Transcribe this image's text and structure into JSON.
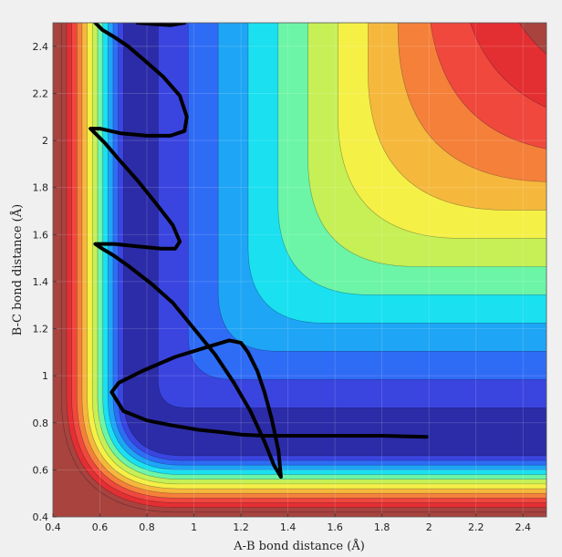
{
  "chart_data": {
    "type": "contour",
    "xlabel": "A-B bond distance (Å)",
    "ylabel": "B-C bond distance (Å)",
    "xlim": [
      0.4,
      2.5
    ],
    "ylim": [
      0.4,
      2.5
    ],
    "xticks": [
      "0.4",
      "0.6",
      "0.8",
      "1",
      "1.2",
      "1.4",
      "1.6",
      "1.8",
      "2",
      "2.2",
      "2.4"
    ],
    "yticks": [
      "0.4",
      "0.6",
      "0.8",
      "1",
      "1.2",
      "1.4",
      "1.6",
      "1.8",
      "2",
      "2.2",
      "2.4"
    ],
    "grid": true,
    "colormap": "jet",
    "trajectory": {
      "color": "#000000",
      "x": [
        1.99,
        1.8,
        1.6,
        1.4,
        1.3,
        1.2,
        1.12,
        1.02,
        0.9,
        0.8,
        0.7,
        0.65,
        0.68,
        0.78,
        0.92,
        1.05,
        1.15,
        1.2,
        1.23,
        1.27,
        1.3,
        1.33,
        1.36,
        1.37,
        1.34,
        1.3,
        1.24,
        1.17,
        1.09,
        1.0,
        0.91,
        0.82,
        0.73,
        0.66,
        0.61,
        0.58,
        0.6,
        0.66,
        0.76,
        0.86,
        0.92,
        0.94,
        0.91,
        0.84,
        0.76,
        0.68,
        0.62,
        0.57,
        0.56,
        0.6,
        0.69,
        0.8,
        0.9,
        0.96,
        0.97,
        0.94,
        0.87,
        0.79,
        0.72,
        0.66,
        0.61,
        0.58
      ],
      "y": [
        0.74,
        0.745,
        0.745,
        0.745,
        0.745,
        0.75,
        0.76,
        0.77,
        0.79,
        0.81,
        0.85,
        0.93,
        0.97,
        1.02,
        1.08,
        1.12,
        1.15,
        1.14,
        1.1,
        1.02,
        0.93,
        0.82,
        0.68,
        0.57,
        0.62,
        0.72,
        0.85,
        0.97,
        1.09,
        1.2,
        1.31,
        1.39,
        1.46,
        1.51,
        1.54,
        1.56,
        1.56,
        1.56,
        1.55,
        1.54,
        1.54,
        1.57,
        1.64,
        1.73,
        1.83,
        1.92,
        1.99,
        2.04,
        2.05,
        2.05,
        2.03,
        2.02,
        2.02,
        2.04,
        2.1,
        2.19,
        2.27,
        2.34,
        2.4,
        2.44,
        2.47,
        2.5
      ]
    },
    "trajectory_top": {
      "x": [
        0.76,
        0.82,
        0.9,
        0.96
      ],
      "y": [
        2.5,
        2.495,
        2.49,
        2.5
      ]
    },
    "energy_colors": [
      "#2c2ca8",
      "#3a45e0",
      "#2f6cf5",
      "#1fa5f5",
      "#1ae0f0",
      "#6cf5a6",
      "#c6f055",
      "#f5f046",
      "#f5b83c",
      "#f5803a",
      "#f0483d",
      "#e42f32",
      "#a8433e"
    ]
  }
}
